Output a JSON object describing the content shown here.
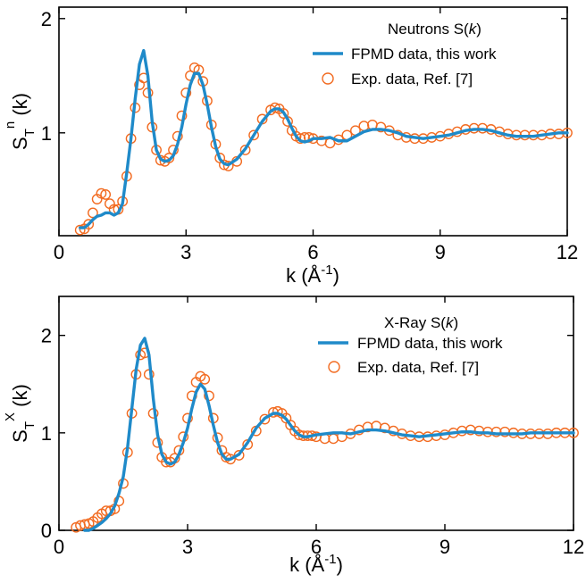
{
  "chart_data": [
    {
      "type": "line",
      "panel": "top",
      "ylabel_main": "S",
      "ylabel_sub": "T",
      "ylabel_sup": "n",
      "ylabel_tail": " (k)",
      "xlabel_main": "k (Å",
      "xlabel_sup": "-1",
      "xlabel_tail": ")",
      "legend_title_pre": "Neutrons S(",
      "legend_title_italic": "k",
      "legend_title_post": ")",
      "legend_placement": "top-right",
      "xlim": [
        0,
        12
      ],
      "ylim": [
        0.1,
        2.1
      ],
      "xticks": [
        0,
        3,
        6,
        9,
        12
      ],
      "yticks": [
        1,
        2
      ],
      "series": [
        {
          "name": "FPMD data, this work",
          "color": "#1f8ac9",
          "style": "line",
          "x": [
            0.5,
            0.6,
            0.7,
            0.8,
            0.9,
            1.0,
            1.1,
            1.2,
            1.3,
            1.4,
            1.5,
            1.6,
            1.7,
            1.8,
            1.9,
            2.0,
            2.1,
            2.2,
            2.3,
            2.4,
            2.5,
            2.6,
            2.7,
            2.8,
            2.9,
            3.0,
            3.1,
            3.2,
            3.3,
            3.4,
            3.5,
            3.6,
            3.7,
            3.8,
            3.9,
            4.0,
            4.2,
            4.4,
            4.6,
            4.8,
            5.0,
            5.1,
            5.2,
            5.3,
            5.4,
            5.5,
            5.6,
            5.7,
            5.8,
            5.9,
            6.0,
            6.2,
            6.4,
            6.6,
            6.8,
            7.0,
            7.2,
            7.4,
            7.6,
            7.8,
            8.0,
            8.2,
            8.4,
            8.6,
            8.8,
            9.0,
            9.2,
            9.4,
            9.6,
            9.8,
            10.0,
            10.2,
            10.4,
            10.6,
            10.8,
            11.0,
            11.2,
            11.4,
            11.6,
            11.8,
            12.0
          ],
          "y": [
            0.17,
            0.17,
            0.2,
            0.24,
            0.27,
            0.28,
            0.3,
            0.3,
            0.28,
            0.3,
            0.38,
            0.65,
            0.95,
            1.3,
            1.6,
            1.72,
            1.5,
            1.1,
            0.85,
            0.77,
            0.75,
            0.76,
            0.8,
            0.9,
            1.05,
            1.25,
            1.42,
            1.52,
            1.52,
            1.42,
            1.25,
            1.05,
            0.88,
            0.77,
            0.73,
            0.72,
            0.77,
            0.86,
            0.98,
            1.1,
            1.19,
            1.21,
            1.21,
            1.18,
            1.12,
            1.04,
            0.97,
            0.93,
            0.92,
            0.93,
            0.95,
            0.95,
            0.96,
            0.93,
            0.93,
            0.97,
            1.01,
            1.03,
            1.03,
            1.02,
            1.0,
            0.97,
            0.96,
            0.95,
            0.96,
            0.97,
            0.98,
            1.0,
            1.02,
            1.03,
            1.03,
            1.02,
            1.0,
            0.98,
            0.97,
            0.97,
            0.97,
            0.98,
            0.99,
            1.0,
            1.0
          ]
        },
        {
          "name": "Exp. data, Ref. [7]",
          "color": "#f26b21",
          "style": "markers",
          "x": [
            0.5,
            0.6,
            0.7,
            0.8,
            0.9,
            1.0,
            1.1,
            1.2,
            1.3,
            1.4,
            1.5,
            1.6,
            1.7,
            1.8,
            1.9,
            2.0,
            2.1,
            2.2,
            2.3,
            2.4,
            2.5,
            2.6,
            2.7,
            2.8,
            2.9,
            3.0,
            3.1,
            3.2,
            3.3,
            3.4,
            3.5,
            3.6,
            3.7,
            3.8,
            3.9,
            4.0,
            4.2,
            4.4,
            4.6,
            4.8,
            5.0,
            5.1,
            5.2,
            5.3,
            5.4,
            5.5,
            5.6,
            5.7,
            5.8,
            5.9,
            6.0,
            6.2,
            6.4,
            6.6,
            6.8,
            7.0,
            7.2,
            7.4,
            7.6,
            7.8,
            8.0,
            8.2,
            8.4,
            8.6,
            8.8,
            9.0,
            9.2,
            9.4,
            9.6,
            9.8,
            10.0,
            10.2,
            10.4,
            10.6,
            10.8,
            11.0,
            11.2,
            11.4,
            11.6,
            11.8,
            12.0
          ],
          "y": [
            0.15,
            0.16,
            0.2,
            0.3,
            0.42,
            0.47,
            0.46,
            0.38,
            0.33,
            0.33,
            0.4,
            0.62,
            0.95,
            1.22,
            1.42,
            1.48,
            1.35,
            1.05,
            0.85,
            0.76,
            0.75,
            0.78,
            0.85,
            0.97,
            1.15,
            1.35,
            1.5,
            1.57,
            1.55,
            1.45,
            1.28,
            1.07,
            0.9,
            0.78,
            0.72,
            0.71,
            0.75,
            0.85,
            0.98,
            1.12,
            1.2,
            1.22,
            1.21,
            1.17,
            1.1,
            1.02,
            0.97,
            0.95,
            0.96,
            0.96,
            0.95,
            0.93,
            0.91,
            0.94,
            0.98,
            1.02,
            1.06,
            1.07,
            1.05,
            1.02,
            0.98,
            0.96,
            0.95,
            0.95,
            0.96,
            0.97,
            0.99,
            1.01,
            1.03,
            1.04,
            1.04,
            1.03,
            1.01,
            0.99,
            0.98,
            0.98,
            0.98,
            0.98,
            0.99,
            0.99,
            1.0
          ]
        }
      ]
    },
    {
      "type": "line",
      "panel": "bottom",
      "ylabel_main": "S",
      "ylabel_sub": "T",
      "ylabel_sup": "X",
      "ylabel_tail": " (k)",
      "xlabel_main": "k (Å",
      "xlabel_sup": "-1",
      "xlabel_tail": ")",
      "legend_title_pre": "X-Ray S(",
      "legend_title_italic": "k",
      "legend_title_post": ")",
      "legend_placement": "top-right",
      "xlim": [
        0,
        12
      ],
      "ylim": [
        0,
        2.4
      ],
      "xticks": [
        0,
        3,
        6,
        9,
        12
      ],
      "yticks": [
        0,
        1,
        2
      ],
      "series": [
        {
          "name": "FPMD data, this work",
          "color": "#1f8ac9",
          "style": "line",
          "x": [
            0.6,
            0.7,
            0.8,
            0.9,
            1.0,
            1.1,
            1.2,
            1.3,
            1.4,
            1.5,
            1.6,
            1.7,
            1.8,
            1.9,
            2.0,
            2.1,
            2.2,
            2.3,
            2.4,
            2.5,
            2.6,
            2.7,
            2.8,
            2.9,
            3.0,
            3.1,
            3.2,
            3.3,
            3.4,
            3.5,
            3.6,
            3.7,
            3.8,
            3.9,
            4.0,
            4.2,
            4.4,
            4.6,
            4.8,
            5.0,
            5.1,
            5.2,
            5.3,
            5.4,
            5.5,
            5.6,
            5.7,
            5.8,
            5.9,
            6.0,
            6.2,
            6.4,
            6.6,
            6.8,
            7.0,
            7.2,
            7.4,
            7.6,
            7.8,
            8.0,
            8.2,
            8.4,
            8.6,
            8.8,
            9.0,
            9.2,
            9.4,
            9.6,
            9.8,
            10.0,
            10.2,
            10.4,
            10.6,
            10.8,
            11.0,
            11.2,
            11.4,
            11.6,
            11.8,
            12.0
          ],
          "y": [
            0.0,
            0.0,
            0.02,
            0.05,
            0.08,
            0.12,
            0.17,
            0.25,
            0.38,
            0.55,
            0.85,
            1.25,
            1.65,
            1.9,
            1.97,
            1.8,
            1.35,
            0.98,
            0.78,
            0.7,
            0.68,
            0.7,
            0.78,
            0.9,
            1.05,
            1.25,
            1.42,
            1.5,
            1.45,
            1.28,
            1.08,
            0.9,
            0.78,
            0.73,
            0.73,
            0.78,
            0.9,
            1.05,
            1.15,
            1.2,
            1.2,
            1.18,
            1.14,
            1.08,
            1.02,
            0.98,
            0.96,
            0.96,
            0.97,
            0.98,
            0.99,
            1.0,
            1.0,
            0.99,
            1.01,
            1.03,
            1.03,
            1.02,
            1.0,
            0.98,
            0.97,
            0.96,
            0.97,
            0.98,
            0.99,
            1.0,
            1.01,
            1.01,
            1.0,
            1.0,
            0.99,
            0.99,
            0.99,
            0.99,
            1.0,
            1.0,
            1.0,
            1.0,
            1.0,
            1.0
          ]
        },
        {
          "name": "Exp. data, Ref. [7]",
          "color": "#f26b21",
          "style": "markers",
          "x": [
            0.4,
            0.5,
            0.6,
            0.7,
            0.8,
            0.9,
            1.0,
            1.1,
            1.2,
            1.3,
            1.4,
            1.5,
            1.6,
            1.7,
            1.8,
            1.9,
            2.0,
            2.1,
            2.2,
            2.3,
            2.4,
            2.5,
            2.6,
            2.7,
            2.8,
            2.9,
            3.0,
            3.1,
            3.2,
            3.3,
            3.4,
            3.5,
            3.6,
            3.7,
            3.8,
            3.9,
            4.0,
            4.2,
            4.4,
            4.6,
            4.8,
            5.0,
            5.1,
            5.2,
            5.3,
            5.4,
            5.5,
            5.6,
            5.7,
            5.8,
            5.9,
            6.0,
            6.2,
            6.4,
            6.6,
            6.8,
            7.0,
            7.2,
            7.4,
            7.6,
            7.8,
            8.0,
            8.2,
            8.4,
            8.6,
            8.8,
            9.0,
            9.2,
            9.4,
            9.6,
            9.8,
            10.0,
            10.2,
            10.4,
            10.6,
            10.8,
            11.0,
            11.2,
            11.4,
            11.6,
            11.8,
            12.0
          ],
          "y": [
            0.03,
            0.05,
            0.06,
            0.07,
            0.09,
            0.13,
            0.17,
            0.2,
            0.2,
            0.22,
            0.3,
            0.48,
            0.8,
            1.2,
            1.6,
            1.8,
            1.82,
            1.6,
            1.2,
            0.9,
            0.75,
            0.7,
            0.7,
            0.74,
            0.82,
            0.96,
            1.15,
            1.38,
            1.52,
            1.58,
            1.55,
            1.38,
            1.15,
            0.95,
            0.82,
            0.75,
            0.73,
            0.77,
            0.88,
            1.02,
            1.14,
            1.21,
            1.22,
            1.2,
            1.15,
            1.08,
            1.02,
            0.98,
            0.97,
            0.97,
            0.97,
            0.96,
            0.94,
            0.94,
            0.96,
            0.99,
            1.03,
            1.06,
            1.07,
            1.05,
            1.02,
            0.99,
            0.97,
            0.96,
            0.96,
            0.97,
            0.98,
            1.0,
            1.02,
            1.03,
            1.02,
            1.01,
            1.01,
            1.01,
            1.0,
            0.99,
            0.99,
            0.99,
            0.99,
            1.0,
            1.0,
            1.0
          ]
        }
      ]
    }
  ]
}
